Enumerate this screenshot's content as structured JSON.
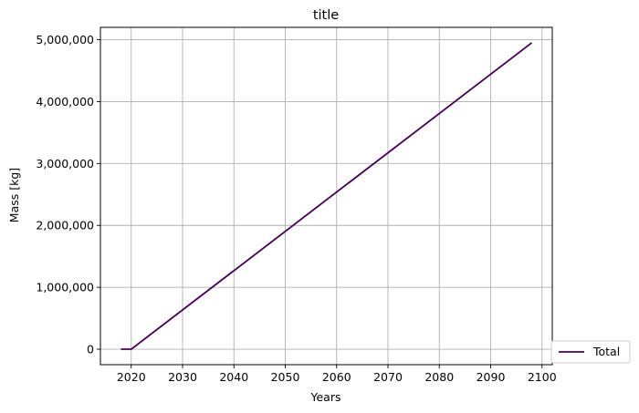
{
  "chart_data": {
    "type": "line",
    "title": "title",
    "xlabel": "Years",
    "ylabel": "Mass [kg]",
    "xlim": [
      2014,
      2102
    ],
    "ylim": [
      -250000,
      5200000
    ],
    "x_ticks": [
      2020,
      2030,
      2040,
      2050,
      2060,
      2070,
      2080,
      2090,
      2100
    ],
    "y_ticks": [
      0,
      1000000,
      2000000,
      3000000,
      4000000,
      5000000
    ],
    "y_tick_labels": [
      "0",
      "1,000,000",
      "2,000,000",
      "3,000,000",
      "4,000,000",
      "5,000,000"
    ],
    "grid": true,
    "legend": {
      "placement": "bottom-right, outside plot"
    },
    "series": [
      {
        "name": "Total",
        "color": "#440154",
        "x": [
          2018,
          2019,
          2020,
          2098
        ],
        "y": [
          0,
          0,
          0,
          4950000
        ]
      }
    ]
  }
}
